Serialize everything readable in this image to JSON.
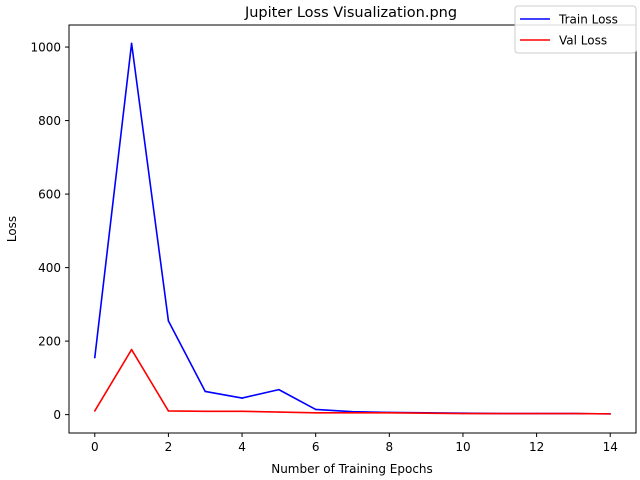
{
  "chart_data": {
    "type": "line",
    "title": "Jupiter Loss Visualization.png",
    "xlabel": "Number of Training Epochs",
    "ylabel": "Loss",
    "xlim": [
      -0.7,
      14.7
    ],
    "ylim": [
      -50,
      1060
    ],
    "x_ticks": [
      0,
      2,
      4,
      6,
      8,
      10,
      12,
      14
    ],
    "y_ticks": [
      0,
      200,
      400,
      600,
      800,
      1000
    ],
    "grid": false,
    "legend_position": "top-right",
    "x": [
      0,
      1,
      2,
      3,
      4,
      5,
      6,
      7,
      8,
      9,
      10,
      11,
      12,
      13,
      14
    ],
    "series": [
      {
        "name": "Train Loss",
        "color": "#0000ff",
        "values": [
          155,
          1010,
          255,
          63,
          45,
          68,
          14,
          8,
          6,
          5,
          4,
          3,
          3,
          3,
          2
        ]
      },
      {
        "name": "Val Loss",
        "color": "#ff0000",
        "values": [
          10,
          177,
          10,
          9,
          9,
          7,
          5,
          5,
          5,
          4,
          3,
          3,
          3,
          3,
          2
        ]
      }
    ]
  }
}
